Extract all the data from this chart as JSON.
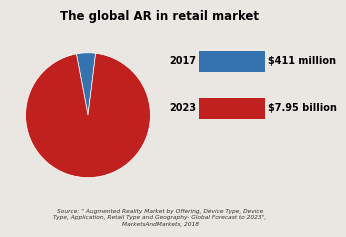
{
  "title": "The global AR in retail market",
  "title_fontsize": 8.5,
  "slices": [
    411,
    7950
  ],
  "colors": [
    "#3472b0",
    "#c0201e"
  ],
  "labels": [
    "2017",
    "2023"
  ],
  "values_text": [
    "$411 million",
    "$7.95 billion"
  ],
  "startangle": 83,
  "source_text": "Source: \" Augmented Reality Market by Offering, Device Type, Device\nType, Application, Retail Type and Geography- Global Forecast to 2023\",\nMarketsAndMarkets, 2018",
  "source_fontsize": 4.2,
  "legend_year_fontsize": 7,
  "legend_value_fontsize": 7,
  "background_color": "#eae6e1"
}
